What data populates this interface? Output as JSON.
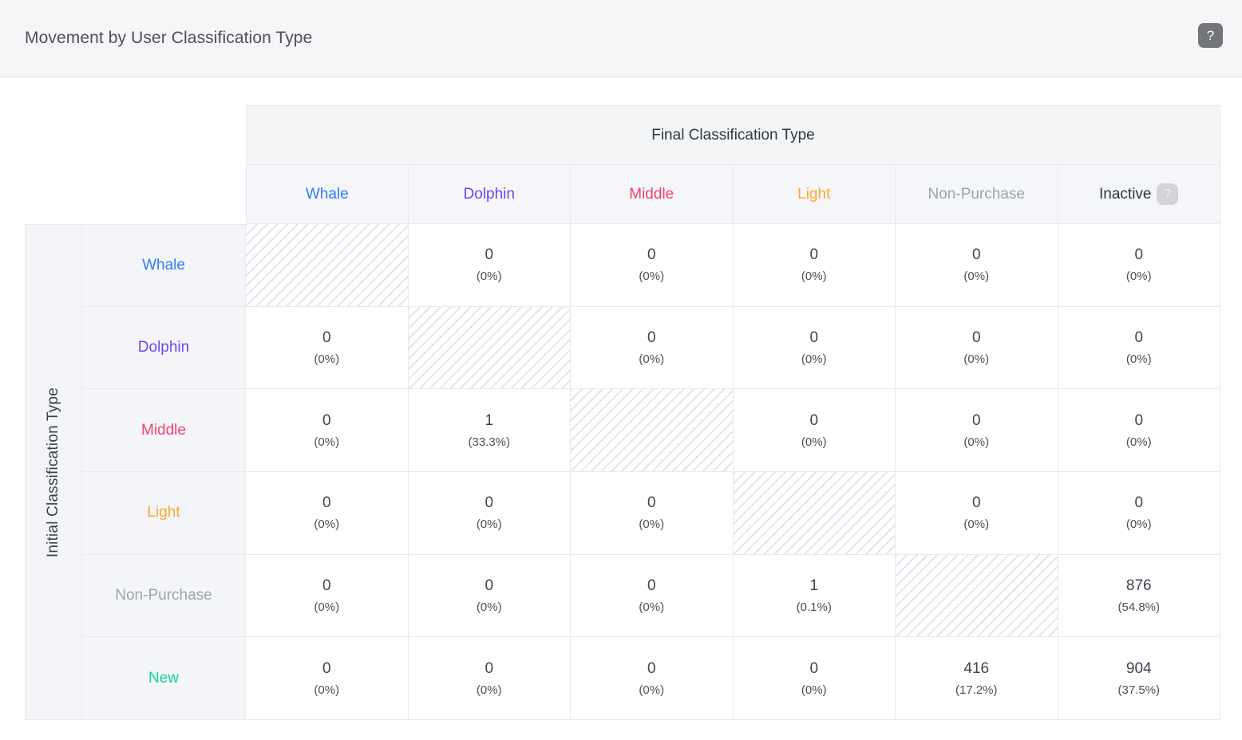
{
  "header": {
    "title": "Movement by User Classification Type",
    "help_icon": "?"
  },
  "table": {
    "column_group_label": "Final Classification Type",
    "row_group_label": "Initial Classification Type",
    "colors": {
      "whale": "#2e7df6",
      "dolphin": "#6a46f2",
      "middle": "#f4426e",
      "light": "#ffa72b",
      "non_purchase": "#9aa5b2",
      "inactive": "#2e3540",
      "new": "#12d49c"
    },
    "columns": [
      {
        "label": "Whale",
        "color": "#2e7df6"
      },
      {
        "label": "Dolphin",
        "color": "#6a46f2"
      },
      {
        "label": "Middle",
        "color": "#f4426e"
      },
      {
        "label": "Light",
        "color": "#ffa72b"
      },
      {
        "label": "Non-Purchase",
        "color": "#9aa5b2"
      },
      {
        "label": "Inactive",
        "color": "#2e3540",
        "help_badge": "?"
      }
    ],
    "rows": [
      {
        "label": "Whale",
        "color": "#2e7df6",
        "cells": [
          {
            "hatched": true
          },
          {
            "count": "0",
            "pct": "(0%)"
          },
          {
            "count": "0",
            "pct": "(0%)"
          },
          {
            "count": "0",
            "pct": "(0%)"
          },
          {
            "count": "0",
            "pct": "(0%)"
          },
          {
            "count": "0",
            "pct": "(0%)"
          }
        ]
      },
      {
        "label": "Dolphin",
        "color": "#6a46f2",
        "cells": [
          {
            "count": "0",
            "pct": "(0%)"
          },
          {
            "hatched": true
          },
          {
            "count": "0",
            "pct": "(0%)"
          },
          {
            "count": "0",
            "pct": "(0%)"
          },
          {
            "count": "0",
            "pct": "(0%)"
          },
          {
            "count": "0",
            "pct": "(0%)"
          }
        ]
      },
      {
        "label": "Middle",
        "color": "#f4426e",
        "cells": [
          {
            "count": "0",
            "pct": "(0%)"
          },
          {
            "count": "1",
            "pct": "(33.3%)"
          },
          {
            "hatched": true
          },
          {
            "count": "0",
            "pct": "(0%)"
          },
          {
            "count": "0",
            "pct": "(0%)"
          },
          {
            "count": "0",
            "pct": "(0%)"
          }
        ]
      },
      {
        "label": "Light",
        "color": "#ffa72b",
        "cells": [
          {
            "count": "0",
            "pct": "(0%)"
          },
          {
            "count": "0",
            "pct": "(0%)"
          },
          {
            "count": "0",
            "pct": "(0%)"
          },
          {
            "hatched": true
          },
          {
            "count": "0",
            "pct": "(0%)"
          },
          {
            "count": "0",
            "pct": "(0%)"
          }
        ]
      },
      {
        "label": "Non-Purchase",
        "color": "#9aa5b2",
        "cells": [
          {
            "count": "0",
            "pct": "(0%)"
          },
          {
            "count": "0",
            "pct": "(0%)"
          },
          {
            "count": "0",
            "pct": "(0%)"
          },
          {
            "count": "1",
            "pct": "(0.1%)"
          },
          {
            "hatched": true
          },
          {
            "count": "876",
            "pct": "(54.8%)"
          }
        ]
      },
      {
        "label": "New",
        "color": "#12d49c",
        "cells": [
          {
            "count": "0",
            "pct": "(0%)"
          },
          {
            "count": "0",
            "pct": "(0%)"
          },
          {
            "count": "0",
            "pct": "(0%)"
          },
          {
            "count": "0",
            "pct": "(0%)"
          },
          {
            "count": "416",
            "pct": "(17.2%)"
          },
          {
            "count": "904",
            "pct": "(37.5%)"
          }
        ]
      }
    ]
  }
}
